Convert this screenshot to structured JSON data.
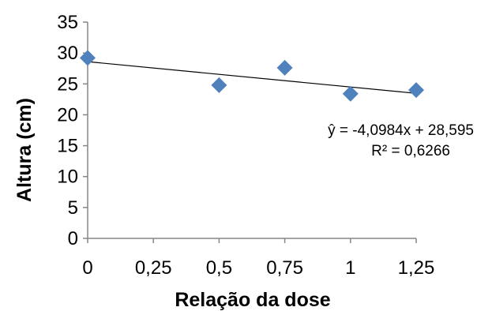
{
  "chart_data": {
    "type": "scatter",
    "xlabel": "Relação da dose",
    "ylabel": "Altura (cm)",
    "xlim": [
      0,
      1.25
    ],
    "ylim": [
      0,
      35
    ],
    "x_ticks": [
      0,
      0.25,
      0.5,
      0.75,
      1,
      1.25
    ],
    "x_tick_labels": [
      "0",
      "0,25",
      "0,5",
      "0,75",
      "1",
      "1,25"
    ],
    "y_ticks": [
      0,
      5,
      10,
      15,
      20,
      25,
      30,
      35
    ],
    "y_tick_labels": [
      "0",
      "5",
      "10",
      "15",
      "20",
      "25",
      "30",
      "35"
    ],
    "grid": false,
    "legend": false,
    "marker": "diamond",
    "marker_color": "#4f81bd",
    "series": [
      {
        "x": [
          0,
          0.5,
          0.75,
          1,
          1.25
        ],
        "y": [
          29.2,
          24.8,
          27.6,
          23.4,
          24.0
        ]
      }
    ],
    "trendline": {
      "type": "linear",
      "slope": -4.0984,
      "intercept": 28.595,
      "color": "#000000"
    },
    "annotations": {
      "equation": "ŷ = -4,0984x + 28,595",
      "r_squared": "R² = 0,6266"
    }
  }
}
